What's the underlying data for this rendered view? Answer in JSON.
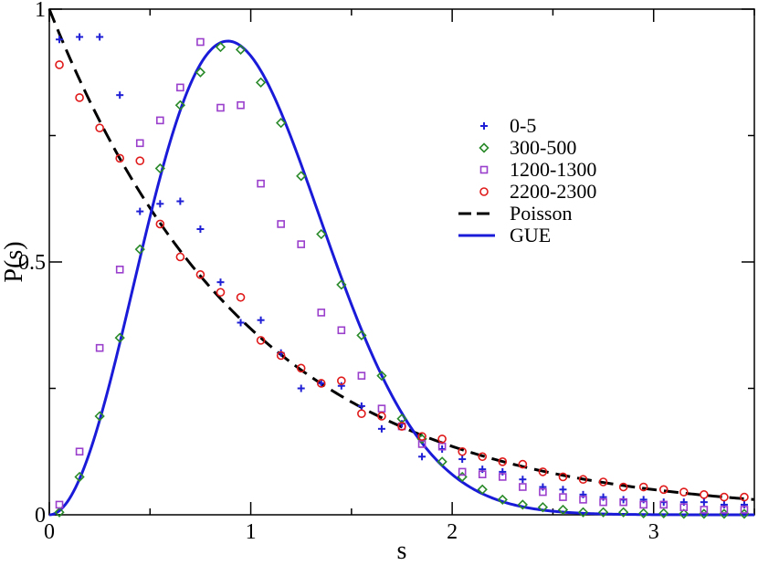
{
  "chart_data": {
    "type": "scatter",
    "title": "",
    "xlabel": "s",
    "ylabel": "P(s)",
    "xlim": [
      0,
      3.5
    ],
    "ylim": [
      0,
      1
    ],
    "x_ticks": [
      0,
      1,
      2,
      3
    ],
    "y_ticks": [
      0,
      0.5,
      1
    ],
    "x_tick_labels": [
      "0",
      "1",
      "2",
      "3"
    ],
    "y_tick_labels": [
      "0",
      "0.5",
      "1"
    ],
    "grid": false,
    "legend_position": "top-right",
    "series": [
      {
        "name": "0-5",
        "marker": "plus",
        "color": "#1f1fd6",
        "x": [
          0.05,
          0.15,
          0.25,
          0.35,
          0.45,
          0.55,
          0.65,
          0.75,
          0.85,
          0.95,
          1.05,
          1.15,
          1.25,
          1.35,
          1.45,
          1.55,
          1.65,
          1.75,
          1.85,
          1.95,
          2.05,
          2.15,
          2.25,
          2.35,
          2.45,
          2.55,
          2.65,
          2.75,
          2.85,
          2.95,
          3.05,
          3.15,
          3.25,
          3.35,
          3.45
        ],
        "y": [
          0.94,
          0.945,
          0.945,
          0.83,
          0.6,
          0.615,
          0.62,
          0.565,
          0.46,
          0.38,
          0.385,
          0.32,
          0.25,
          0.26,
          0.255,
          0.215,
          0.17,
          0.18,
          0.115,
          0.13,
          0.11,
          0.09,
          0.085,
          0.07,
          0.055,
          0.05,
          0.04,
          0.035,
          0.03,
          0.03,
          0.025,
          0.025,
          0.025,
          0.02,
          0.02
        ]
      },
      {
        "name": "300-500",
        "marker": "diamond",
        "color": "#2a8a2a",
        "x": [
          0.05,
          0.15,
          0.25,
          0.35,
          0.45,
          0.55,
          0.65,
          0.75,
          0.85,
          0.95,
          1.05,
          1.15,
          1.25,
          1.35,
          1.45,
          1.55,
          1.65,
          1.75,
          1.85,
          1.95,
          2.05,
          2.15,
          2.25,
          2.35,
          2.45,
          2.55,
          2.65,
          2.75,
          2.85,
          2.95,
          3.05,
          3.15,
          3.25,
          3.35,
          3.45
        ],
        "y": [
          0.005,
          0.075,
          0.195,
          0.35,
          0.525,
          0.685,
          0.81,
          0.875,
          0.925,
          0.92,
          0.855,
          0.775,
          0.67,
          0.555,
          0.455,
          0.355,
          0.275,
          0.19,
          0.15,
          0.105,
          0.075,
          0.05,
          0.03,
          0.02,
          0.015,
          0.01,
          0.005,
          0.005,
          0.005,
          0.003,
          0.003,
          0.002,
          0.002,
          0.002,
          0.002
        ]
      },
      {
        "name": "1200-1300",
        "marker": "square",
        "color": "#9a3fcc",
        "x": [
          0.05,
          0.15,
          0.25,
          0.35,
          0.45,
          0.55,
          0.65,
          0.75,
          0.85,
          0.95,
          1.05,
          1.15,
          1.25,
          1.35,
          1.45,
          1.55,
          1.65,
          1.75,
          1.85,
          1.95,
          2.05,
          2.15,
          2.25,
          2.35,
          2.45,
          2.55,
          2.65,
          2.75,
          2.85,
          2.95,
          3.05,
          3.15,
          3.25,
          3.35,
          3.45
        ],
        "y": [
          0.02,
          0.125,
          0.33,
          0.485,
          0.735,
          0.78,
          0.845,
          0.935,
          0.805,
          0.81,
          0.655,
          0.575,
          0.535,
          0.4,
          0.365,
          0.275,
          0.21,
          0.175,
          0.14,
          0.135,
          0.085,
          0.08,
          0.075,
          0.055,
          0.045,
          0.035,
          0.03,
          0.025,
          0.025,
          0.02,
          0.02,
          0.015,
          0.01,
          0.01,
          0.01
        ]
      },
      {
        "name": "2200-2300",
        "marker": "circle",
        "color": "#e01a1a",
        "x": [
          0.05,
          0.15,
          0.25,
          0.35,
          0.45,
          0.55,
          0.65,
          0.75,
          0.85,
          0.95,
          1.05,
          1.15,
          1.25,
          1.35,
          1.45,
          1.55,
          1.65,
          1.75,
          1.85,
          1.95,
          2.05,
          2.15,
          2.25,
          2.35,
          2.45,
          2.55,
          2.65,
          2.75,
          2.85,
          2.95,
          3.05,
          3.15,
          3.25,
          3.35,
          3.45
        ],
        "y": [
          0.89,
          0.825,
          0.765,
          0.705,
          0.7,
          0.575,
          0.51,
          0.475,
          0.44,
          0.43,
          0.345,
          0.315,
          0.29,
          0.26,
          0.265,
          0.2,
          0.195,
          0.175,
          0.155,
          0.15,
          0.125,
          0.115,
          0.105,
          0.1,
          0.085,
          0.075,
          0.07,
          0.065,
          0.055,
          0.055,
          0.05,
          0.045,
          0.04,
          0.035,
          0.035
        ]
      }
    ],
    "curves": [
      {
        "name": "Poisson",
        "formula": "P(s) = exp(-s)",
        "style": "dashed",
        "color": "#000000"
      },
      {
        "name": "GUE",
        "formula": "P(s) = (32/pi^2) s^2 exp(-4 s^2 / pi)",
        "style": "solid",
        "color": "#1a1ad9"
      }
    ]
  }
}
